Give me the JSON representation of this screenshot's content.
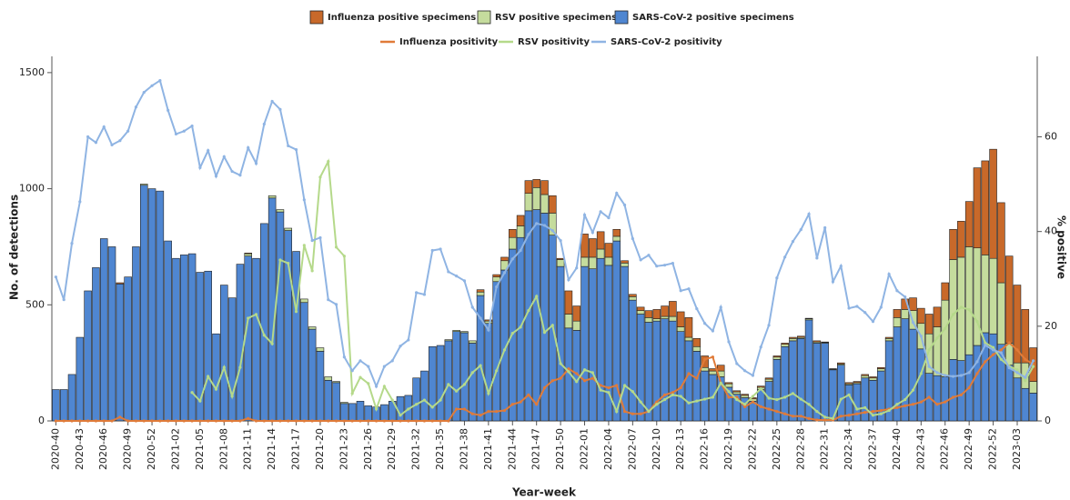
{
  "chart_data": {
    "type": "bar",
    "x_label": "Year-week",
    "y_label": "No. of detections",
    "y2_label": "% positive",
    "categories": [
      "2020-40",
      null,
      null,
      "2020-43",
      null,
      null,
      "2020-46",
      null,
      null,
      "2020-49",
      null,
      null,
      "2020-52",
      null,
      null,
      "2021-02",
      null,
      null,
      "2021-05",
      null,
      null,
      "2021-08",
      null,
      null,
      "2021-11",
      null,
      null,
      "2021-14",
      null,
      null,
      "2021-17",
      null,
      null,
      "2021-20",
      null,
      null,
      "2021-23",
      null,
      null,
      "2021-26",
      null,
      null,
      "2021-29",
      null,
      null,
      "2021-32",
      null,
      null,
      "2021-35",
      null,
      null,
      "2021-38",
      null,
      null,
      "2021-41",
      null,
      null,
      "2021-44",
      null,
      null,
      "2021-47",
      null,
      null,
      "2021-50",
      null,
      null,
      "2022-01",
      null,
      null,
      "2022-04",
      null,
      null,
      "2022-07",
      null,
      null,
      "2022-10",
      null,
      null,
      "2022-13",
      null,
      null,
      "2022-16",
      null,
      null,
      "2022-19",
      null,
      null,
      "2022-22",
      null,
      null,
      "2022-25",
      null,
      null,
      "2022-28",
      null,
      null,
      "2022-31",
      null,
      null,
      "2022-34",
      null,
      null,
      "2022-37",
      null,
      null,
      "2022-40",
      null,
      null,
      "2022-43",
      null,
      null,
      "2022-46",
      null,
      null,
      "2022-49",
      null,
      null,
      "2022-52",
      null,
      null,
      "2023-03",
      null,
      null
    ],
    "ylim": [
      0,
      1570
    ],
    "yticks": [
      0,
      500,
      1000,
      1500
    ],
    "y2lim": [
      0,
      77
    ],
    "y2ticks": [
      0,
      20,
      40,
      60
    ],
    "series": [
      {
        "name": "Influenza positive specimens",
        "type": "bar",
        "color": "#c8692a",
        "values": [
          0,
          0,
          0,
          0,
          0,
          0,
          0,
          0,
          5,
          0,
          0,
          0,
          0,
          0,
          0,
          0,
          0,
          0,
          0,
          0,
          0,
          0,
          0,
          0,
          3,
          0,
          0,
          0,
          0,
          0,
          0,
          0,
          0,
          0,
          0,
          0,
          0,
          0,
          0,
          0,
          0,
          0,
          0,
          0,
          0,
          0,
          0,
          0,
          0,
          0,
          0,
          0,
          0,
          10,
          5,
          10,
          15,
          35,
          45,
          55,
          35,
          60,
          75,
          5,
          100,
          65,
          100,
          80,
          75,
          60,
          30,
          10,
          10,
          15,
          30,
          40,
          45,
          65,
          65,
          85,
          35,
          50,
          10,
          25,
          5,
          5,
          5,
          5,
          5,
          5,
          5,
          5,
          5,
          5,
          2,
          5,
          2,
          2,
          5,
          5,
          5,
          5,
          5,
          5,
          5,
          35,
          45,
          55,
          65,
          85,
          85,
          75,
          130,
          155,
          195,
          345,
          405,
          470,
          345,
          375,
          335,
          230,
          145
        ]
      },
      {
        "name": "RSV positive specimens",
        "type": "bar",
        "color": "#c5dc9d",
        "values": [
          0,
          0,
          0,
          0,
          0,
          0,
          0,
          0,
          0,
          0,
          0,
          5,
          0,
          0,
          0,
          0,
          0,
          0,
          0,
          0,
          0,
          0,
          0,
          0,
          10,
          0,
          0,
          10,
          10,
          10,
          0,
          15,
          10,
          15,
          15,
          5,
          5,
          0,
          0,
          0,
          0,
          0,
          0,
          0,
          0,
          0,
          0,
          0,
          0,
          5,
          5,
          5,
          10,
          15,
          10,
          20,
          40,
          50,
          50,
          75,
          95,
          80,
          95,
          30,
          60,
          40,
          40,
          50,
          40,
          35,
          20,
          15,
          15,
          15,
          20,
          10,
          10,
          20,
          20,
          15,
          20,
          15,
          15,
          25,
          15,
          10,
          10,
          10,
          10,
          10,
          10,
          10,
          10,
          5,
          5,
          5,
          3,
          3,
          5,
          5,
          5,
          10,
          10,
          10,
          10,
          40,
          40,
          80,
          110,
          170,
          210,
          330,
          430,
          445,
          465,
          420,
          335,
          325,
          265,
          95,
          65,
          110,
          50
        ]
      },
      {
        "name": "SARS-CoV-2 positive specimens",
        "type": "bar",
        "color": "#4f86d1",
        "values": [
          135,
          135,
          200,
          360,
          560,
          660,
          785,
          750,
          590,
          620,
          750,
          1015,
          1000,
          990,
          775,
          700,
          715,
          720,
          640,
          645,
          375,
          585,
          530,
          675,
          710,
          700,
          850,
          960,
          900,
          820,
          730,
          510,
          395,
          300,
          175,
          165,
          75,
          75,
          85,
          65,
          60,
          70,
          85,
          105,
          110,
          185,
          215,
          320,
          325,
          345,
          385,
          380,
          335,
          540,
          420,
          600,
          650,
          740,
          790,
          905,
          910,
          895,
          800,
          665,
          400,
          390,
          665,
          655,
          700,
          670,
          775,
          665,
          520,
          460,
          425,
          430,
          440,
          430,
          385,
          345,
          300,
          215,
          200,
          190,
          145,
          115,
          100,
          85,
          135,
          170,
          265,
          320,
          345,
          355,
          435,
          335,
          335,
          220,
          240,
          155,
          160,
          185,
          175,
          215,
          345,
          405,
          440,
          395,
          310,
          205,
          195,
          190,
          265,
          260,
          285,
          325,
          380,
          375,
          330,
          240,
          185,
          140,
          120
        ]
      },
      {
        "name": "Influenza positivity",
        "type": "line",
        "axis": "y2",
        "color": "#e07b39",
        "values": [
          0,
          0,
          0,
          0,
          0,
          0,
          0,
          0,
          0.8,
          0,
          0,
          0,
          0,
          0,
          0,
          0,
          0,
          0,
          0,
          0,
          0,
          0,
          0,
          0,
          0.5,
          0,
          0,
          0,
          0,
          0,
          0,
          0,
          0,
          0,
          0,
          0,
          0,
          0,
          0,
          0,
          0,
          0,
          0,
          0,
          0,
          0,
          0,
          0,
          0,
          0,
          2.5,
          2.5,
          1.5,
          1.2,
          2,
          2,
          2.2,
          3.5,
          4,
          5.5,
          3.5,
          7,
          8.5,
          9,
          11,
          10,
          8.5,
          9,
          7.5,
          7,
          7.5,
          2,
          1.5,
          1.5,
          2,
          4,
          5.5,
          6,
          7,
          10,
          9,
          13,
          13.5,
          8,
          5,
          5,
          3,
          4,
          3,
          2.5,
          2,
          1.5,
          1,
          1,
          0.5,
          0.2,
          0.2,
          0.2,
          1,
          1.2,
          1.5,
          1.8,
          2,
          2.2,
          2.5,
          2.8,
          3.2,
          3.5,
          4,
          5,
          3.5,
          4,
          5,
          5.5,
          7,
          10,
          12.5,
          14,
          15,
          16.5,
          15,
          13,
          12
        ]
      },
      {
        "name": "RSV positivity",
        "type": "line",
        "axis": "y2",
        "color": "#b5d98a",
        "values": [
          null,
          null,
          null,
          null,
          null,
          null,
          null,
          null,
          null,
          null,
          null,
          null,
          null,
          null,
          null,
          null,
          null,
          6,
          4.2,
          9.4,
          6.7,
          11.3,
          5.2,
          11.3,
          21.7,
          22.5,
          18.1,
          16.3,
          34,
          33.3,
          23.1,
          37.1,
          31.7,
          51.5,
          54.8,
          36.7,
          34.8,
          5.8,
          9.2,
          7.9,
          2.5,
          7.3,
          4.4,
          1.2,
          2.5,
          3.5,
          4.4,
          2.9,
          4.4,
          7.7,
          6.3,
          7.7,
          10.2,
          11.7,
          5.8,
          10.6,
          15,
          18.5,
          19.8,
          23.3,
          26.3,
          18.7,
          20.2,
          12.1,
          10.4,
          8.3,
          10.8,
          10.2,
          6.5,
          6,
          2,
          7.5,
          6.2,
          4,
          2,
          3.5,
          4.5,
          5.5,
          5.2,
          3.8,
          4.2,
          4.6,
          5,
          8,
          6.2,
          4.5,
          3.5,
          5.2,
          6.8,
          4.8,
          4.5,
          5,
          5.8,
          4.6,
          3.5,
          2,
          0.8,
          0.5,
          4.6,
          5.5,
          2.5,
          2.8,
          1.2,
          1.5,
          2.2,
          3.5,
          4.5,
          6.5,
          10,
          15,
          17.5,
          19.5,
          22.5,
          24,
          23.5,
          21,
          16.5,
          15.5,
          13,
          11.5,
          10.8,
          8.5,
          11.5
        ]
      },
      {
        "name": "SARS-CoV-2 positivity",
        "type": "line",
        "axis": "y2",
        "color": "#8fb4e3",
        "values": [
          30.4,
          25.6,
          37.5,
          46.3,
          60,
          58.8,
          62.1,
          58.3,
          59.2,
          61.2,
          66.3,
          69.4,
          70.8,
          71.9,
          65.6,
          60.6,
          61.2,
          62.3,
          53.5,
          57.1,
          51.7,
          55.8,
          52.7,
          51.9,
          57.7,
          54.4,
          62.7,
          67.5,
          65.8,
          58.1,
          57.3,
          46.7,
          38.1,
          38.7,
          25.6,
          24.6,
          13.5,
          10.6,
          12.7,
          11.5,
          7.3,
          11.5,
          12.7,
          15.8,
          17.1,
          27.1,
          26.7,
          36,
          36.3,
          31.5,
          30.6,
          29.6,
          24,
          21.7,
          19.2,
          28.3,
          31.3,
          34.2,
          36,
          39.4,
          41.7,
          41.3,
          40.2,
          38.1,
          29.8,
          32.3,
          43.5,
          39.8,
          44.2,
          42.9,
          48.1,
          45.6,
          38.5,
          34,
          35,
          32.7,
          32.9,
          33.3,
          27.5,
          27.9,
          23.7,
          20.6,
          19,
          24,
          16.7,
          12.1,
          10.6,
          9.6,
          15.6,
          20.2,
          30.2,
          34.6,
          37.9,
          40.4,
          43.7,
          34.4,
          40.8,
          29.4,
          32.7,
          23.8,
          24.2,
          22.9,
          21,
          24,
          31,
          27.5,
          26.2,
          20.8,
          17.9,
          11.5,
          10.2,
          9.6,
          9.4,
          9.6,
          10.2,
          12.5,
          16,
          15,
          14.4,
          11.2,
          10.2,
          9.2,
          12.7
        ]
      }
    ]
  }
}
